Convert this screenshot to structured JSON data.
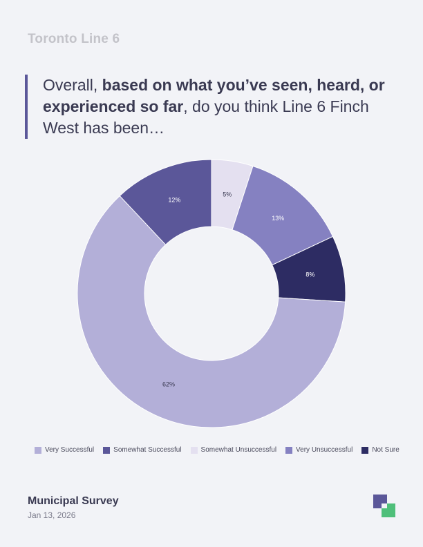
{
  "header": {
    "label": "Toronto Line 6"
  },
  "question": {
    "pre": "Overall, ",
    "bold": "based on what you’ve seen, heard, or experienced so far",
    "post": ", do you think Line 6 Finch West has been…"
  },
  "chart_data": {
    "type": "pie",
    "donut": true,
    "categories": [
      "Very Successful",
      "Somewhat Successful",
      "Somewhat Unsuccessful",
      "Very Unsuccessful",
      "Not Sure"
    ],
    "values": [
      62,
      12,
      5,
      13,
      8
    ],
    "value_labels": [
      "62%",
      "12%",
      "5%",
      "13%",
      "8%"
    ],
    "slice_order_clockwise_from_top": [
      "Somewhat Unsuccessful",
      "Very Unsuccessful",
      "Not Sure",
      "Very Successful",
      "Somewhat Successful"
    ],
    "colors": {
      "Very Successful": "#b3afd8",
      "Somewhat Successful": "#5b5799",
      "Somewhat Unsuccessful": "#e4e0f0",
      "Very Unsuccessful": "#8581c1",
      "Not Sure": "#2d2c63"
    },
    "label_colors": {
      "Very Successful": "#3a3a52",
      "Somewhat Successful": "#ffffff",
      "Somewhat Unsuccessful": "#3a3a52",
      "Very Unsuccessful": "#ffffff",
      "Not Sure": "#ffffff"
    },
    "legend_position": "bottom"
  },
  "footer": {
    "title": "Municipal Survey",
    "date": "Jan 13, 2026"
  },
  "logo": {
    "icon": "stacked-squares-logo",
    "colors": [
      "#5b5799",
      "#4fbf7a"
    ]
  }
}
